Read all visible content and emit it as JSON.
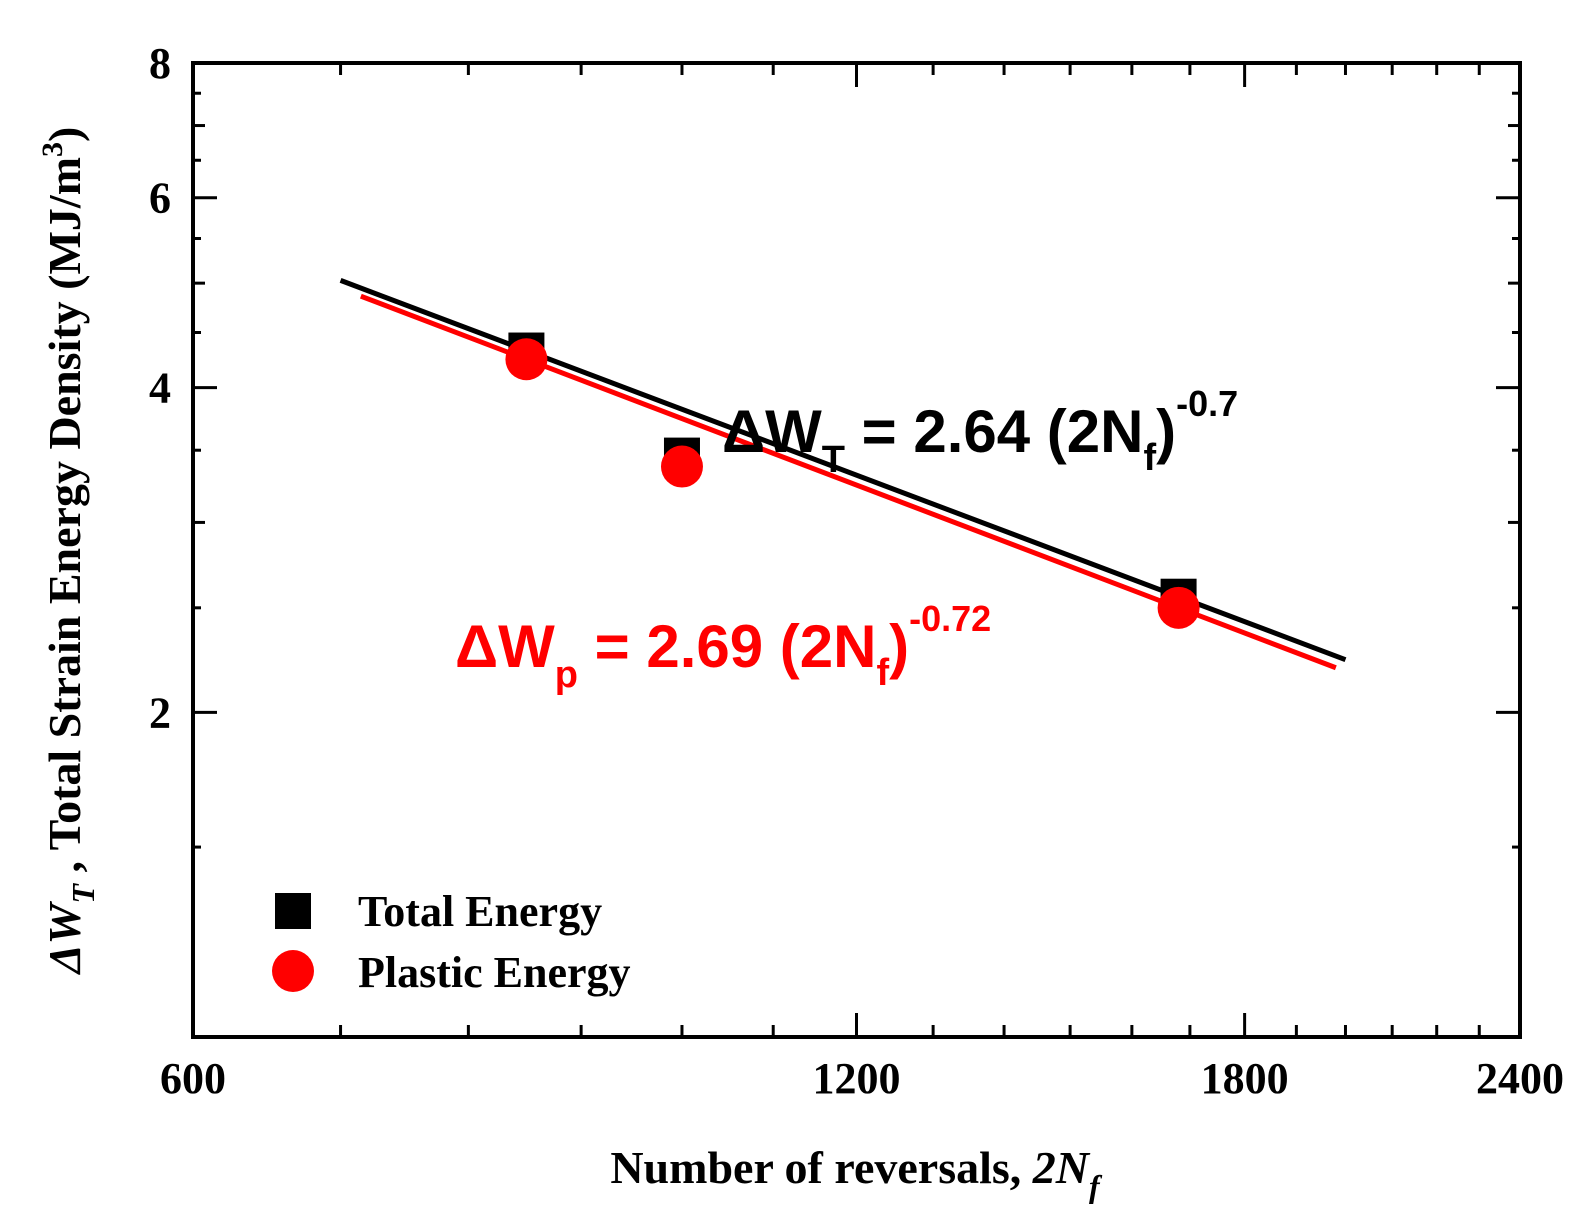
{
  "chart_data": {
    "type": "scatter",
    "xscale": "log",
    "yscale": "log",
    "xlim": [
      600,
      2400
    ],
    "ylim": [
      1,
      8
    ],
    "x_ticks": [
      600,
      1200,
      1800,
      2400
    ],
    "x_tick_labels": [
      "600",
      "1200",
      "1800",
      "2400"
    ],
    "y_ticks": [
      2,
      4,
      6,
      8
    ],
    "y_tick_labels": [
      "2",
      "4",
      "6",
      "8"
    ],
    "xlabel": {
      "main": "Number of reversals, ",
      "symbol": "2N",
      "sub": "f"
    },
    "ylabel": {
      "symbol": "ΔW",
      "sub": "T",
      "main": " , Total Strain Energy Density (MJ/m",
      "sup": "3",
      "end": ")"
    },
    "series": [
      {
        "name": "Total Energy",
        "marker": "square",
        "color": "#000000",
        "x": [
          850,
          1000,
          1680
        ],
        "y": [
          4.33,
          3.46,
          2.56
        ],
        "fit": {
          "coef": 2.64,
          "exp": -0.7,
          "x_range": [
            700,
            2000
          ]
        }
      },
      {
        "name": "Plastic Energy",
        "marker": "circle",
        "color": "#ff0000",
        "x": [
          850,
          1000,
          1680
        ],
        "y": [
          4.25,
          3.38,
          2.5
        ],
        "fit": {
          "coef": 2.69,
          "exp": -0.72,
          "x_range": [
            715,
            1980
          ]
        }
      }
    ],
    "annotations": {
      "total": {
        "delta_w": "ΔW",
        "sub": "T",
        "rest": " = 2.64 (2N",
        "inner_sub": "f",
        "close": ")",
        "sup": "-0.7"
      },
      "plastic": {
        "delta_w": "ΔW",
        "sub": "p",
        "rest": " = 2.69 (2N",
        "inner_sub": "f",
        "close": ")",
        "sup": "-0.72"
      }
    },
    "legend_position": "bottom-left"
  }
}
